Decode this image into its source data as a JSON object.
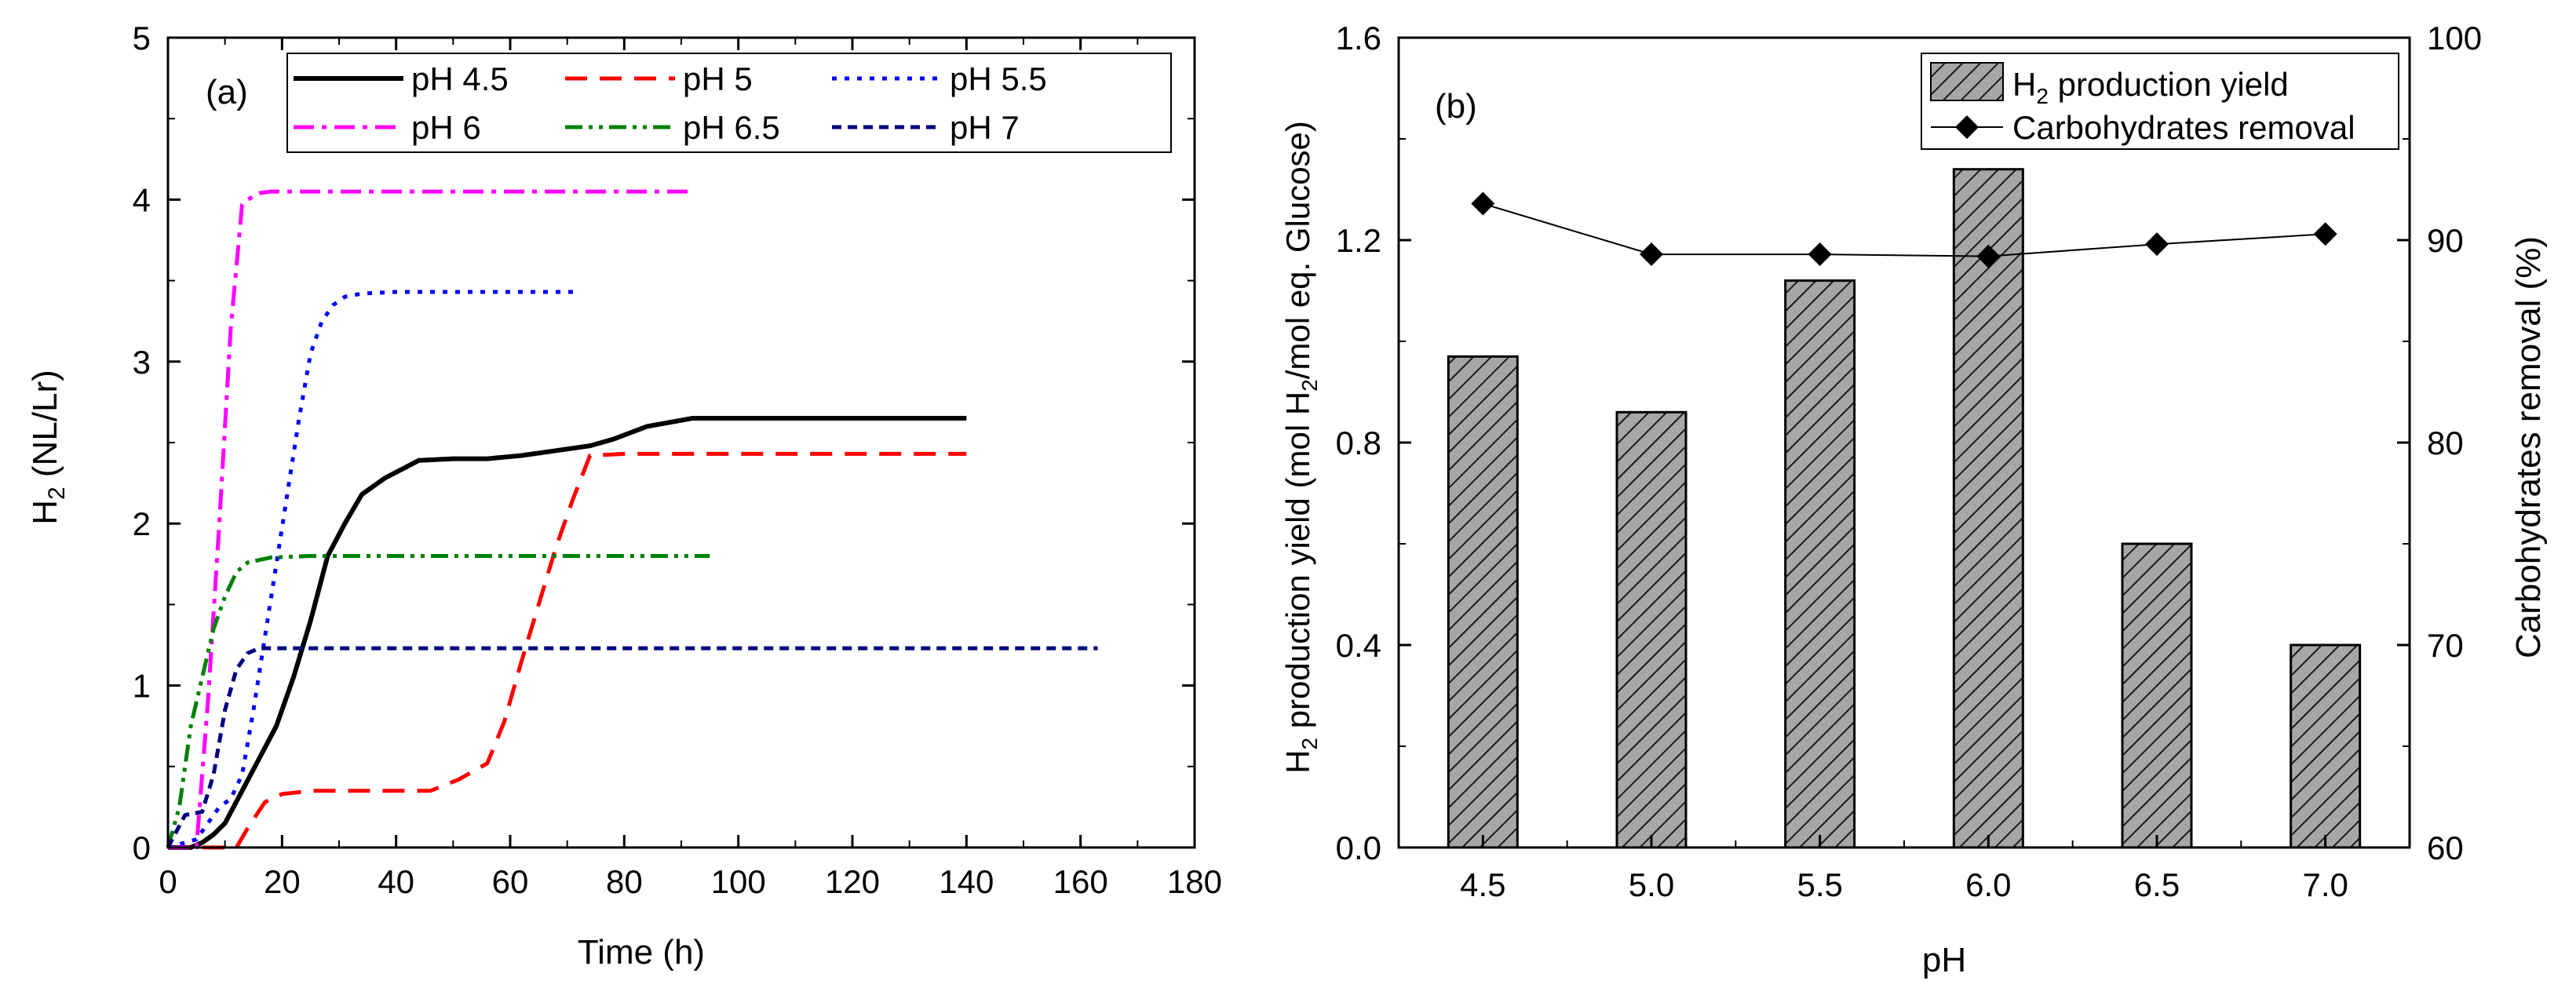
{
  "chart_data": [
    {
      "panel_label": "(a)",
      "type": "line",
      "xlabel": "Time (h)",
      "ylabel": "H2 (NL/Lr)",
      "ylabel_main": "H",
      "ylabel_sub": "2",
      "ylabel_rest": " (NL/Lr)",
      "xlim": [
        0,
        180
      ],
      "ylim": [
        0,
        5
      ],
      "xticks": [
        0,
        20,
        40,
        60,
        80,
        100,
        120,
        140,
        160,
        180
      ],
      "yticks": [
        0,
        1,
        2,
        3,
        4,
        5
      ],
      "grid": false,
      "legend_position": "top",
      "series": [
        {
          "name": "pH 4.5",
          "color": "#000000",
          "dash": "solid",
          "x": [
            0,
            4,
            6,
            8,
            10,
            13,
            16,
            19,
            22,
            25,
            28,
            31,
            34,
            38,
            44,
            50,
            56,
            62,
            68,
            74,
            78,
            84,
            92,
            110,
            140
          ],
          "y": [
            0,
            0,
            0.03,
            0.08,
            0.15,
            0.35,
            0.55,
            0.75,
            1.05,
            1.4,
            1.8,
            2.0,
            2.18,
            2.28,
            2.39,
            2.4,
            2.4,
            2.42,
            2.45,
            2.48,
            2.52,
            2.6,
            2.65,
            2.65,
            2.65
          ]
        },
        {
          "name": "pH 5",
          "color": "#ff0000",
          "dash": "long",
          "x": [
            0,
            12,
            14,
            17,
            20,
            25,
            30,
            40,
            46,
            51,
            56,
            59,
            62,
            65,
            68,
            71,
            74,
            80,
            100,
            140
          ],
          "y": [
            0,
            0,
            0.12,
            0.28,
            0.33,
            0.35,
            0.35,
            0.35,
            0.35,
            0.42,
            0.52,
            0.78,
            1.15,
            1.5,
            1.85,
            2.15,
            2.42,
            2.43,
            2.43,
            2.43
          ]
        },
        {
          "name": "pH 5.5",
          "color": "#0000ff",
          "dash": "dot",
          "x": [
            0,
            5,
            7,
            9,
            11,
            13,
            15,
            17,
            19,
            21,
            23,
            25,
            27,
            29,
            31,
            34,
            40,
            72
          ],
          "y": [
            0,
            0.05,
            0.15,
            0.25,
            0.3,
            0.45,
            0.85,
            1.3,
            1.75,
            2.2,
            2.65,
            3.05,
            3.25,
            3.35,
            3.4,
            3.42,
            3.43,
            3.43
          ]
        },
        {
          "name": "pH 6",
          "color": "#ff00ff",
          "dash": "dashdot",
          "x": [
            0,
            5,
            7,
            9,
            11,
            13,
            14,
            16,
            18,
            22,
            30,
            50,
            92
          ],
          "y": [
            0,
            0,
            0.9,
            2.0,
            3.2,
            3.97,
            4.0,
            4.04,
            4.05,
            4.05,
            4.05,
            4.05,
            4.05
          ]
        },
        {
          "name": "pH 6.5",
          "color": "#008000",
          "dash": "dashdotdot",
          "x": [
            0,
            2,
            4,
            6,
            8,
            10,
            12,
            14,
            18,
            25,
            35,
            60,
            95
          ],
          "y": [
            0,
            0.25,
            0.75,
            1.05,
            1.35,
            1.55,
            1.7,
            1.76,
            1.79,
            1.8,
            1.8,
            1.8,
            1.8
          ]
        },
        {
          "name": "pH 7",
          "color": "#000080",
          "dash": "short",
          "x": [
            0,
            3,
            6,
            8,
            10,
            12,
            14,
            16,
            20,
            30,
            60,
            100,
            163
          ],
          "y": [
            0,
            0.2,
            0.22,
            0.45,
            0.85,
            1.1,
            1.2,
            1.23,
            1.23,
            1.23,
            1.23,
            1.23,
            1.23
          ]
        }
      ]
    },
    {
      "panel_label": "(b)",
      "type": "bar",
      "xlabel": "pH",
      "ylabel": "H2 production yield (mol H2/mol eq. Glucose)",
      "ylabel_parts": [
        "H",
        "2",
        " production yield (mol H",
        "2",
        "/mol eq. Glucose)"
      ],
      "ylabel_right": "Carbohydrates removal (%)",
      "categories": [
        "4.5",
        "5.0",
        "5.5",
        "6.0",
        "6.5",
        "7.0"
      ],
      "ylim": [
        0,
        1.6
      ],
      "yticks": [
        "0.0",
        "0.4",
        "0.8",
        "1.2",
        "1.6"
      ],
      "ylim_right": [
        60,
        100
      ],
      "yticks_right": [
        60,
        70,
        80,
        90,
        100
      ],
      "grid": false,
      "legend_position": "top-right",
      "series": [
        {
          "name": "H2 production yield",
          "legend_parts": [
            "H",
            "2",
            " production yield"
          ],
          "type": "bar",
          "axis": "left",
          "values": [
            0.97,
            0.86,
            1.12,
            1.34,
            0.6,
            0.4
          ],
          "color": "#a0a0a0",
          "pattern": "diagonal-hatch"
        },
        {
          "name": "Carbohydrates removal",
          "type": "line",
          "axis": "right",
          "marker": "diamond",
          "values": [
            91.8,
            89.3,
            89.3,
            89.2,
            89.8,
            90.3
          ],
          "color": "#000000"
        }
      ]
    }
  ]
}
